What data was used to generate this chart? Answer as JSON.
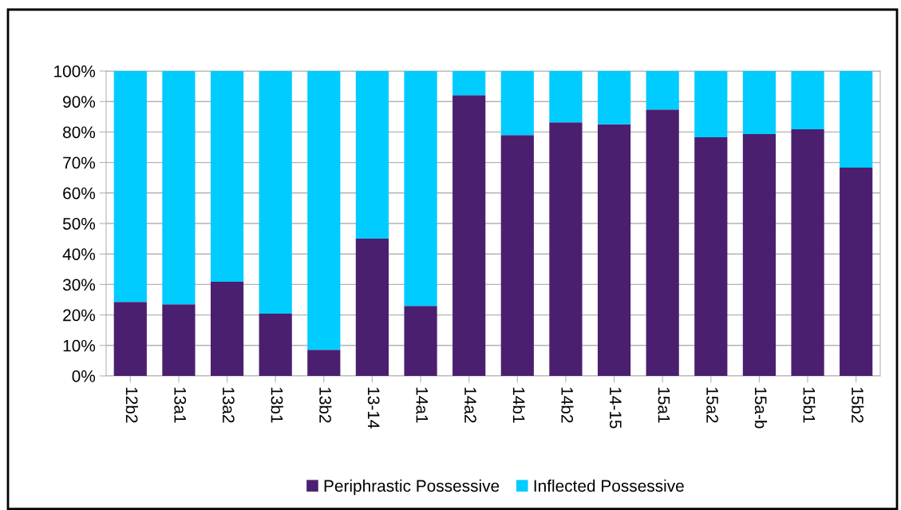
{
  "chart_data": {
    "type": "bar",
    "stacked": true,
    "categories": [
      "12b2",
      "13a1",
      "13a2",
      "13b1",
      "13b2",
      "13-14",
      "14a1",
      "14a2",
      "14b1",
      "14b2",
      "14-15",
      "15a1",
      "15a2",
      "15a-b",
      "15b1",
      "15b2"
    ],
    "series": [
      {
        "name": "Periphrastic Possessive",
        "color": "#4b1f6f",
        "values": [
          24.3,
          23.5,
          30.9,
          20.4,
          8.6,
          45,
          23,
          92.1,
          79,
          83.2,
          82.5,
          87.4,
          78.3,
          79.3,
          80.9,
          68.3
        ]
      },
      {
        "name": "Inflected Possessive",
        "color": "#00ccff",
        "values": [
          75.7,
          76.5,
          69.1,
          79.6,
          91.4,
          55,
          77,
          7.9,
          21,
          16.8,
          17.5,
          12.6,
          21.7,
          20.7,
          19.1,
          31.7
        ]
      }
    ],
    "ylim": [
      0,
      100
    ],
    "yticks": [
      {
        "value": 0,
        "label": "0%"
      },
      {
        "value": 10,
        "label": "10%"
      },
      {
        "value": 20,
        "label": "20%"
      },
      {
        "value": 30,
        "label": "30%"
      },
      {
        "value": 40,
        "label": "40%"
      },
      {
        "value": 50,
        "label": "50%"
      },
      {
        "value": 60,
        "label": "60%"
      },
      {
        "value": 70,
        "label": "70%"
      },
      {
        "value": 80,
        "label": "80%"
      },
      {
        "value": 90,
        "label": "90%"
      },
      {
        "value": 100,
        "label": "100%"
      }
    ],
    "grid": "y",
    "legend": "bottom"
  }
}
